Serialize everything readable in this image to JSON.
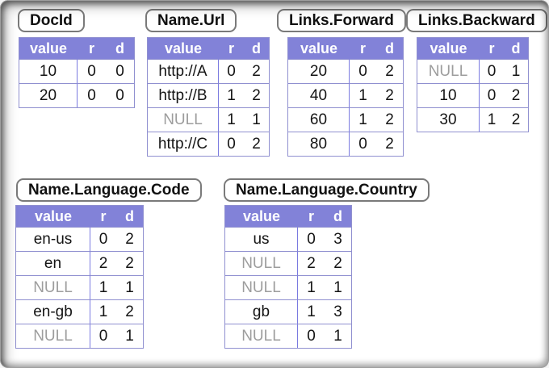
{
  "colors": {
    "header_bg": "#8282d8",
    "header_text": "#ffffff",
    "grid": "#9090d0",
    "divider": "#7a7ae0",
    "null_text": "#9d9d9d",
    "cell_text": "#141414",
    "label_border": "#7a7a7a"
  },
  "columns": {
    "value": "value",
    "r": "r",
    "d": "d"
  },
  "tables": [
    {
      "id": "docid",
      "title": "DocId",
      "rows": [
        {
          "value": "10",
          "r": "0",
          "d": "0",
          "is_null": false
        },
        {
          "value": "20",
          "r": "0",
          "d": "0",
          "is_null": false
        }
      ]
    },
    {
      "id": "name-url",
      "title": "Name.Url",
      "rows": [
        {
          "value": "http://A",
          "r": "0",
          "d": "2",
          "is_null": false
        },
        {
          "value": "http://B",
          "r": "1",
          "d": "2",
          "is_null": false
        },
        {
          "value": "NULL",
          "r": "1",
          "d": "1",
          "is_null": true
        },
        {
          "value": "http://C",
          "r": "0",
          "d": "2",
          "is_null": false
        }
      ]
    },
    {
      "id": "links-forward",
      "title": "Links.Forward",
      "rows": [
        {
          "value": "20",
          "r": "0",
          "d": "2",
          "is_null": false
        },
        {
          "value": "40",
          "r": "1",
          "d": "2",
          "is_null": false
        },
        {
          "value": "60",
          "r": "1",
          "d": "2",
          "is_null": false
        },
        {
          "value": "80",
          "r": "0",
          "d": "2",
          "is_null": false
        }
      ]
    },
    {
      "id": "links-backward",
      "title": "Links.Backward",
      "rows": [
        {
          "value": "NULL",
          "r": "0",
          "d": "1",
          "is_null": true
        },
        {
          "value": "10",
          "r": "0",
          "d": "2",
          "is_null": false
        },
        {
          "value": "30",
          "r": "1",
          "d": "2",
          "is_null": false
        }
      ]
    },
    {
      "id": "name-language-code",
      "title": "Name.Language.Code",
      "rows": [
        {
          "value": "en-us",
          "r": "0",
          "d": "2",
          "is_null": false
        },
        {
          "value": "en",
          "r": "2",
          "d": "2",
          "is_null": false
        },
        {
          "value": "NULL",
          "r": "1",
          "d": "1",
          "is_null": true
        },
        {
          "value": "en-gb",
          "r": "1",
          "d": "2",
          "is_null": false
        },
        {
          "value": "NULL",
          "r": "0",
          "d": "1",
          "is_null": true
        }
      ]
    },
    {
      "id": "name-language-country",
      "title": "Name.Language.Country",
      "rows": [
        {
          "value": "us",
          "r": "0",
          "d": "3",
          "is_null": false
        },
        {
          "value": "NULL",
          "r": "2",
          "d": "2",
          "is_null": true
        },
        {
          "value": "NULL",
          "r": "1",
          "d": "1",
          "is_null": true
        },
        {
          "value": "gb",
          "r": "1",
          "d": "3",
          "is_null": false
        },
        {
          "value": "NULL",
          "r": "0",
          "d": "1",
          "is_null": true
        }
      ]
    }
  ]
}
